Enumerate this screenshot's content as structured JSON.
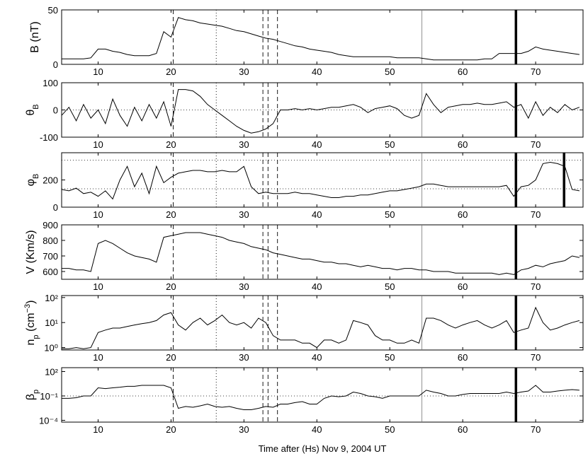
{
  "chart_data": [
    {
      "type": "line",
      "ylabel": [
        {
          "text": "B (nT)"
        }
      ],
      "xlim": [
        5,
        76.5
      ],
      "xticks": [
        10,
        20,
        30,
        40,
        50,
        60,
        70
      ],
      "ylim": [
        0,
        50
      ],
      "yticks": [
        0,
        50
      ],
      "yscale": "linear",
      "color": "#000000",
      "x": [
        5,
        6,
        7,
        8,
        9,
        10,
        11,
        12,
        13,
        14,
        15,
        16,
        17,
        18,
        19,
        20,
        21,
        22,
        23,
        24,
        25,
        26,
        27,
        28,
        29,
        30,
        31,
        32,
        33,
        34,
        35,
        36,
        37,
        38,
        39,
        40,
        41,
        42,
        43,
        44,
        45,
        46,
        47,
        48,
        49,
        50,
        51,
        52,
        53,
        54,
        55,
        56,
        57,
        58,
        59,
        60,
        61,
        62,
        63,
        64,
        65,
        66,
        67,
        68,
        69,
        70,
        71,
        72,
        73,
        74,
        75,
        76
      ],
      "series": [
        {
          "values": [
            5,
            5,
            5,
            5,
            6,
            14,
            14,
            12,
            11,
            9,
            8,
            8,
            8,
            10,
            30,
            25,
            43,
            41,
            40,
            38,
            37,
            36,
            35,
            33,
            31,
            30,
            28,
            26,
            24,
            23,
            21,
            19,
            17,
            16,
            14,
            13,
            12,
            11,
            9,
            8,
            7,
            7,
            7,
            7,
            7,
            7,
            6,
            6,
            6,
            6,
            5,
            4,
            4,
            4,
            4,
            4,
            4,
            4,
            5,
            5,
            10,
            10,
            10,
            10,
            12,
            16,
            14,
            13,
            12,
            11,
            10,
            9
          ]
        }
      ],
      "vlines": [
        {
          "x": 20.3,
          "style": "dashed"
        },
        {
          "x": 26.2,
          "style": "dotted"
        },
        {
          "x": 32.6,
          "style": "dashed"
        },
        {
          "x": 33.3,
          "style": "dashed"
        },
        {
          "x": 34.6,
          "style": "dashed"
        },
        {
          "x": 54.4,
          "style": "solid"
        },
        {
          "x": 67.3,
          "style": "thick"
        }
      ],
      "hlines": []
    },
    {
      "type": "line",
      "ylabel": [
        {
          "text": "θ"
        },
        {
          "text": "B",
          "style": "sub"
        }
      ],
      "xlim": [
        5,
        76.5
      ],
      "xticks": [
        10,
        20,
        30,
        40,
        50,
        60,
        70
      ],
      "ylim": [
        -100,
        100
      ],
      "yticks": [
        -100,
        0,
        100
      ],
      "yscale": "linear",
      "color": "#000000",
      "x": [
        5,
        6,
        7,
        8,
        9,
        10,
        11,
        12,
        13,
        14,
        15,
        16,
        17,
        18,
        19,
        20,
        21,
        22,
        23,
        24,
        25,
        26,
        27,
        28,
        29,
        30,
        31,
        32,
        33,
        34,
        35,
        36,
        37,
        38,
        39,
        40,
        41,
        42,
        43,
        44,
        45,
        46,
        47,
        48,
        49,
        50,
        51,
        52,
        53,
        54,
        55,
        56,
        57,
        58,
        59,
        60,
        61,
        62,
        63,
        64,
        65,
        66,
        67,
        68,
        69,
        70,
        71,
        72,
        73,
        74,
        75,
        76
      ],
      "series": [
        {
          "values": [
            -20,
            10,
            -40,
            20,
            -30,
            0,
            -50,
            40,
            -20,
            -60,
            10,
            -40,
            20,
            -30,
            30,
            -60,
            75,
            75,
            70,
            50,
            20,
            0,
            -20,
            -40,
            -60,
            -75,
            -85,
            -80,
            -70,
            -50,
            0,
            0,
            5,
            0,
            5,
            0,
            5,
            10,
            10,
            15,
            20,
            10,
            -10,
            5,
            10,
            15,
            5,
            -20,
            -30,
            -20,
            60,
            20,
            -10,
            10,
            15,
            20,
            20,
            25,
            20,
            20,
            25,
            30,
            10,
            20,
            -30,
            30,
            -20,
            10,
            -10,
            20,
            0,
            10
          ]
        }
      ],
      "vlines": [
        {
          "x": 20.3,
          "style": "dashed"
        },
        {
          "x": 26.2,
          "style": "dotted"
        },
        {
          "x": 32.6,
          "style": "dashed"
        },
        {
          "x": 33.3,
          "style": "dashed"
        },
        {
          "x": 34.6,
          "style": "dashed"
        },
        {
          "x": 54.4,
          "style": "solid"
        },
        {
          "x": 67.3,
          "style": "thick"
        }
      ],
      "hlines": [
        0
      ]
    },
    {
      "type": "line",
      "ylabel": [
        {
          "text": "φ"
        },
        {
          "text": "B",
          "style": "sub"
        }
      ],
      "xlim": [
        5,
        76.5
      ],
      "xticks": [
        10,
        20,
        30,
        40,
        50,
        60,
        70
      ],
      "ylim": [
        0,
        400
      ],
      "yticks": [
        0,
        200
      ],
      "yscale": "linear",
      "color": "#000000",
      "x": [
        5,
        6,
        7,
        8,
        9,
        10,
        11,
        12,
        13,
        14,
        15,
        16,
        17,
        18,
        19,
        20,
        21,
        22,
        23,
        24,
        25,
        26,
        27,
        28,
        29,
        30,
        31,
        32,
        33,
        34,
        35,
        36,
        37,
        38,
        39,
        40,
        41,
        42,
        43,
        44,
        45,
        46,
        47,
        48,
        49,
        50,
        51,
        52,
        53,
        54,
        55,
        56,
        57,
        58,
        59,
        60,
        61,
        62,
        63,
        64,
        65,
        66,
        67,
        68,
        69,
        70,
        71,
        72,
        73,
        74,
        75,
        76
      ],
      "series": [
        {
          "values": [
            130,
            120,
            140,
            100,
            110,
            80,
            120,
            60,
            200,
            300,
            150,
            250,
            100,
            300,
            180,
            220,
            250,
            260,
            270,
            270,
            260,
            260,
            270,
            260,
            260,
            300,
            150,
            100,
            110,
            100,
            100,
            100,
            110,
            100,
            100,
            90,
            80,
            70,
            70,
            80,
            80,
            90,
            90,
            100,
            110,
            120,
            120,
            130,
            140,
            150,
            170,
            170,
            160,
            150,
            150,
            150,
            150,
            150,
            150,
            150,
            150,
            160,
            80,
            150,
            160,
            200,
            320,
            330,
            320,
            300,
            130,
            120
          ]
        }
      ],
      "vlines": [
        {
          "x": 20.3,
          "style": "dashed"
        },
        {
          "x": 26.2,
          "style": "dotted"
        },
        {
          "x": 32.6,
          "style": "dashed"
        },
        {
          "x": 33.3,
          "style": "dashed"
        },
        {
          "x": 34.6,
          "style": "dashed"
        },
        {
          "x": 54.4,
          "style": "solid"
        },
        {
          "x": 67.3,
          "style": "thick"
        },
        {
          "x": 73.9,
          "style": "thick"
        }
      ],
      "hlines": [
        135,
        345
      ]
    },
    {
      "type": "line",
      "ylabel": [
        {
          "text": "V (Km/s)"
        }
      ],
      "xlim": [
        5,
        76.5
      ],
      "xticks": [
        10,
        20,
        30,
        40,
        50,
        60,
        70
      ],
      "ylim": [
        550,
        900
      ],
      "yticks": [
        600,
        700,
        800,
        900
      ],
      "yscale": "linear",
      "color": "#000000",
      "x": [
        5,
        6,
        7,
        8,
        9,
        10,
        11,
        12,
        13,
        14,
        15,
        16,
        17,
        18,
        19,
        20,
        21,
        22,
        23,
        24,
        25,
        26,
        27,
        28,
        29,
        30,
        31,
        32,
        33,
        34,
        35,
        36,
        37,
        38,
        39,
        40,
        41,
        42,
        43,
        44,
        45,
        46,
        47,
        48,
        49,
        50,
        51,
        52,
        53,
        54,
        55,
        56,
        57,
        58,
        59,
        60,
        61,
        62,
        63,
        64,
        65,
        66,
        67,
        68,
        69,
        70,
        71,
        72,
        73,
        74,
        75,
        76
      ],
      "series": [
        {
          "values": [
            620,
            620,
            610,
            610,
            600,
            780,
            800,
            780,
            750,
            720,
            700,
            690,
            680,
            660,
            820,
            830,
            840,
            850,
            850,
            850,
            840,
            830,
            820,
            800,
            790,
            780,
            760,
            750,
            740,
            720,
            710,
            700,
            690,
            680,
            680,
            670,
            660,
            660,
            650,
            650,
            640,
            630,
            640,
            630,
            620,
            620,
            610,
            620,
            620,
            610,
            610,
            600,
            600,
            600,
            590,
            590,
            590,
            590,
            590,
            590,
            580,
            590,
            580,
            610,
            620,
            640,
            630,
            650,
            660,
            670,
            700,
            690
          ]
        }
      ],
      "vlines": [
        {
          "x": 20.3,
          "style": "dashed"
        },
        {
          "x": 26.2,
          "style": "dotted"
        },
        {
          "x": 32.6,
          "style": "dashed"
        },
        {
          "x": 33.3,
          "style": "dashed"
        },
        {
          "x": 34.6,
          "style": "dashed"
        },
        {
          "x": 54.4,
          "style": "solid"
        },
        {
          "x": 67.3,
          "style": "thick"
        }
      ],
      "hlines": []
    },
    {
      "type": "line",
      "ylabel": [
        {
          "text": "n"
        },
        {
          "text": "p",
          "style": "sub"
        },
        {
          "text": " (cm"
        },
        {
          "text": "−3",
          "style": "sup"
        },
        {
          "text": ")"
        }
      ],
      "xlim": [
        5,
        76.5
      ],
      "xticks": [
        10,
        20,
        30,
        40,
        50,
        60,
        70
      ],
      "ylim": [
        0.8,
        120
      ],
      "yticks": [
        {
          "value": 1,
          "label": "10⁰"
        },
        {
          "value": 10,
          "label": "10¹"
        },
        {
          "value": 100,
          "label": "10²"
        }
      ],
      "yscale": "log",
      "color": "#000000",
      "x": [
        5,
        6,
        7,
        8,
        9,
        10,
        11,
        12,
        13,
        14,
        15,
        16,
        17,
        18,
        19,
        20,
        21,
        22,
        23,
        24,
        25,
        26,
        27,
        28,
        29,
        30,
        31,
        32,
        33,
        34,
        35,
        36,
        37,
        38,
        39,
        40,
        41,
        42,
        43,
        44,
        45,
        46,
        47,
        48,
        49,
        50,
        51,
        52,
        53,
        54,
        55,
        56,
        57,
        58,
        59,
        60,
        61,
        62,
        63,
        64,
        65,
        66,
        67,
        68,
        69,
        70,
        71,
        72,
        73,
        74,
        75,
        76
      ],
      "series": [
        {
          "values": [
            0.9,
            0.9,
            1,
            0.9,
            1,
            4,
            5,
            6,
            6,
            7,
            8,
            9,
            10,
            12,
            20,
            25,
            8,
            5,
            10,
            15,
            8,
            12,
            20,
            10,
            8,
            10,
            6,
            15,
            10,
            3,
            2,
            2,
            2,
            1.5,
            1.5,
            1,
            2,
            2,
            1.5,
            2,
            12,
            10,
            8,
            3,
            2,
            2,
            1.5,
            1.5,
            2,
            1.5,
            15,
            15,
            12,
            8,
            6,
            8,
            10,
            12,
            8,
            6,
            8,
            12,
            4,
            5,
            6,
            40,
            10,
            5,
            6,
            8,
            10,
            12
          ]
        }
      ],
      "vlines": [
        {
          "x": 20.3,
          "style": "dashed"
        },
        {
          "x": 26.2,
          "style": "dotted"
        },
        {
          "x": 32.6,
          "style": "dashed"
        },
        {
          "x": 33.3,
          "style": "dashed"
        },
        {
          "x": 34.6,
          "style": "dashed"
        },
        {
          "x": 54.4,
          "style": "solid"
        },
        {
          "x": 67.3,
          "style": "thick"
        }
      ],
      "hlines": []
    },
    {
      "type": "line",
      "ylabel": [
        {
          "text": "β"
        },
        {
          "text": "p",
          "style": "sub"
        }
      ],
      "xlabel": "Time after (Hs) Nov 9, 2004 UT",
      "xlim": [
        5,
        76.5
      ],
      "xticks": [
        10,
        20,
        30,
        40,
        50,
        60,
        70
      ],
      "ylim": [
        6e-05,
        300
      ],
      "yticks": [
        {
          "value": 0.0001,
          "label": "10⁻⁴"
        },
        {
          "value": 0.1,
          "label": "10⁻¹"
        },
        {
          "value": 100,
          "label": "10²"
        }
      ],
      "yscale": "log",
      "color": "#000000",
      "x": [
        5,
        6,
        7,
        8,
        9,
        10,
        11,
        12,
        13,
        14,
        15,
        16,
        17,
        18,
        19,
        20,
        21,
        22,
        23,
        24,
        25,
        26,
        27,
        28,
        29,
        30,
        31,
        32,
        33,
        34,
        35,
        36,
        37,
        38,
        39,
        40,
        41,
        42,
        43,
        44,
        45,
        46,
        47,
        48,
        49,
        50,
        51,
        52,
        53,
        54,
        55,
        56,
        57,
        58,
        59,
        60,
        61,
        62,
        63,
        64,
        65,
        66,
        67,
        68,
        69,
        70,
        71,
        72,
        73,
        74,
        75,
        76
      ],
      "series": [
        {
          "values": [
            0.05,
            0.05,
            0.06,
            0.1,
            0.1,
            1,
            0.8,
            1,
            1.2,
            1.5,
            1.5,
            2,
            2,
            2,
            2,
            1,
            0.003,
            0.005,
            0.004,
            0.006,
            0.01,
            0.005,
            0.004,
            0.005,
            0.003,
            0.002,
            0.002,
            0.003,
            0.005,
            0.004,
            0.01,
            0.01,
            0.015,
            0.02,
            0.01,
            0.01,
            0.05,
            0.1,
            0.08,
            0.1,
            0.3,
            0.2,
            0.1,
            0.08,
            0.05,
            0.1,
            0.1,
            0.1,
            0.1,
            0.1,
            0.5,
            0.3,
            0.2,
            0.1,
            0.1,
            0.15,
            0.2,
            0.2,
            0.2,
            0.2,
            0.2,
            0.3,
            0.2,
            0.3,
            0.4,
            2,
            0.3,
            0.3,
            0.4,
            0.5,
            0.6,
            0.5
          ]
        }
      ],
      "vlines": [
        {
          "x": 20.3,
          "style": "dashed"
        },
        {
          "x": 26.2,
          "style": "dotted"
        },
        {
          "x": 32.6,
          "style": "dashed"
        },
        {
          "x": 33.3,
          "style": "dashed"
        },
        {
          "x": 34.6,
          "style": "dashed"
        },
        {
          "x": 54.4,
          "style": "solid"
        },
        {
          "x": 67.3,
          "style": "thick"
        }
      ],
      "hlines": [
        0.1
      ]
    }
  ]
}
